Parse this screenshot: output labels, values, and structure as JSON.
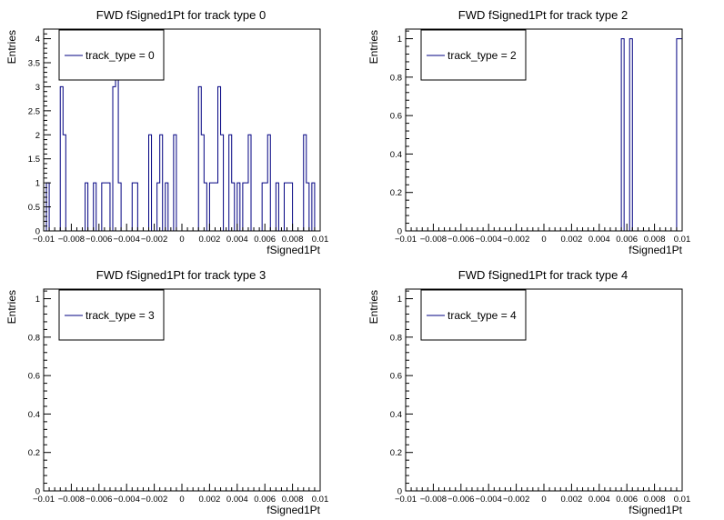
{
  "chart_data": [
    {
      "type": "histogram",
      "title": "FWD fSigned1Pt for track type 0",
      "xlabel": "fSigned1Pt",
      "ylabel": "Entries",
      "legend_label": "track_type = 0",
      "legend_position": "top-left",
      "xlim": [
        -0.01,
        0.01
      ],
      "ylim": [
        0,
        4.2
      ],
      "xticks": [
        -0.01,
        -0.008,
        -0.006,
        -0.004,
        -0.002,
        0,
        0.002,
        0.004,
        0.006,
        0.008,
        0.01
      ],
      "xtick_labels": [
        "−0.01",
        "−0.008",
        "−0.006",
        "−0.004",
        "−0.002",
        "0",
        "0.002",
        "0.004",
        "0.006",
        "0.008",
        "0.01"
      ],
      "yticks": [
        0,
        0.5,
        1,
        1.5,
        2,
        2.5,
        3,
        3.5,
        4
      ],
      "ytick_labels": [
        "0",
        "0.5",
        "1",
        "1.5",
        "2",
        "2.5",
        "3",
        "3.5",
        "4"
      ],
      "series_color": "#000080",
      "bins": [
        {
          "x0": -0.0098,
          "x1": -0.0096,
          "y": 1
        },
        {
          "x0": -0.0088,
          "x1": -0.0086,
          "y": 3
        },
        {
          "x0": -0.0086,
          "x1": -0.0084,
          "y": 2
        },
        {
          "x0": -0.007,
          "x1": -0.0068,
          "y": 1
        },
        {
          "x0": -0.0064,
          "x1": -0.0062,
          "y": 1
        },
        {
          "x0": -0.0058,
          "x1": -0.0052,
          "y": 1
        },
        {
          "x0": -0.005,
          "x1": -0.0048,
          "y": 3
        },
        {
          "x0": -0.0048,
          "x1": -0.0046,
          "y": 4
        },
        {
          "x0": -0.0046,
          "x1": -0.0044,
          "y": 1
        },
        {
          "x0": -0.0036,
          "x1": -0.0032,
          "y": 1
        },
        {
          "x0": -0.0024,
          "x1": -0.0022,
          "y": 2
        },
        {
          "x0": -0.0018,
          "x1": -0.0016,
          "y": 1
        },
        {
          "x0": -0.0016,
          "x1": -0.0014,
          "y": 2
        },
        {
          "x0": -0.0012,
          "x1": -0.001,
          "y": 1
        },
        {
          "x0": -0.0006,
          "x1": -0.0004,
          "y": 2
        },
        {
          "x0": 0.0012,
          "x1": 0.0014,
          "y": 3
        },
        {
          "x0": 0.0014,
          "x1": 0.0016,
          "y": 2
        },
        {
          "x0": 0.0016,
          "x1": 0.0018,
          "y": 1
        },
        {
          "x0": 0.002,
          "x1": 0.0026,
          "y": 1
        },
        {
          "x0": 0.0026,
          "x1": 0.0028,
          "y": 3
        },
        {
          "x0": 0.0028,
          "x1": 0.003,
          "y": 2
        },
        {
          "x0": 0.0034,
          "x1": 0.0036,
          "y": 2
        },
        {
          "x0": 0.0036,
          "x1": 0.0038,
          "y": 1
        },
        {
          "x0": 0.004,
          "x1": 0.0042,
          "y": 1
        },
        {
          "x0": 0.0044,
          "x1": 0.0048,
          "y": 1
        },
        {
          "x0": 0.0048,
          "x1": 0.005,
          "y": 2
        },
        {
          "x0": 0.0058,
          "x1": 0.0062,
          "y": 1
        },
        {
          "x0": 0.0062,
          "x1": 0.0064,
          "y": 2
        },
        {
          "x0": 0.0068,
          "x1": 0.007,
          "y": 1
        },
        {
          "x0": 0.0074,
          "x1": 0.008,
          "y": 1
        },
        {
          "x0": 0.0088,
          "x1": 0.009,
          "y": 2
        },
        {
          "x0": 0.009,
          "x1": 0.0092,
          "y": 1
        },
        {
          "x0": 0.0094,
          "x1": 0.0096,
          "y": 1
        }
      ]
    },
    {
      "type": "histogram",
      "title": "FWD fSigned1Pt for track type 2",
      "xlabel": "fSigned1Pt",
      "ylabel": "Entries",
      "legend_label": "track_type = 2",
      "legend_position": "top-left",
      "xlim": [
        -0.01,
        0.01
      ],
      "ylim": [
        0,
        1.05
      ],
      "xticks": [
        -0.01,
        -0.008,
        -0.006,
        -0.004,
        -0.002,
        0,
        0.002,
        0.004,
        0.006,
        0.008,
        0.01
      ],
      "xtick_labels": [
        "−0.01",
        "−0.008",
        "−0.006",
        "−0.004",
        "−0.002",
        "0",
        "0.002",
        "0.004",
        "0.006",
        "0.008",
        "0.01"
      ],
      "yticks": [
        0,
        0.2,
        0.4,
        0.6,
        0.8,
        1
      ],
      "ytick_labels": [
        "0",
        "0.2",
        "0.4",
        "0.6",
        "0.8",
        "1"
      ],
      "series_color": "#000080",
      "bins": [
        {
          "x0": 0.0056,
          "x1": 0.0058,
          "y": 1
        },
        {
          "x0": 0.0062,
          "x1": 0.0064,
          "y": 1
        },
        {
          "x0": 0.0096,
          "x1": 0.0098,
          "y": 1
        },
        {
          "x0": 0.0098,
          "x1": 0.01,
          "y": 1
        }
      ]
    },
    {
      "type": "histogram",
      "title": "FWD fSigned1Pt for track type 3",
      "xlabel": "fSigned1Pt",
      "ylabel": "Entries",
      "legend_label": "track_type = 3",
      "legend_position": "top-left",
      "xlim": [
        -0.01,
        0.01
      ],
      "ylim": [
        0,
        1.05
      ],
      "xticks": [
        -0.01,
        -0.008,
        -0.006,
        -0.004,
        -0.002,
        0,
        0.002,
        0.004,
        0.006,
        0.008,
        0.01
      ],
      "xtick_labels": [
        "−0.01",
        "−0.008",
        "−0.006",
        "−0.004",
        "−0.002",
        "0",
        "0.002",
        "0.004",
        "0.006",
        "0.008",
        "0.01"
      ],
      "yticks": [
        0,
        0.2,
        0.4,
        0.6,
        0.8,
        1
      ],
      "ytick_labels": [
        "0",
        "0.2",
        "0.4",
        "0.6",
        "0.8",
        "1"
      ],
      "series_color": "#000080",
      "bins": []
    },
    {
      "type": "histogram",
      "title": "FWD fSigned1Pt for track type 4",
      "xlabel": "fSigned1Pt",
      "ylabel": "Entries",
      "legend_label": "track_type = 4",
      "legend_position": "top-left",
      "xlim": [
        -0.01,
        0.01
      ],
      "ylim": [
        0,
        1.05
      ],
      "xticks": [
        -0.01,
        -0.008,
        -0.006,
        -0.004,
        -0.002,
        0,
        0.002,
        0.004,
        0.006,
        0.008,
        0.01
      ],
      "xtick_labels": [
        "−0.01",
        "−0.008",
        "−0.006",
        "−0.004",
        "−0.002",
        "0",
        "0.002",
        "0.004",
        "0.006",
        "0.008",
        "0.01"
      ],
      "yticks": [
        0,
        0.2,
        0.4,
        0.6,
        0.8,
        1
      ],
      "ytick_labels": [
        "0",
        "0.2",
        "0.4",
        "0.6",
        "0.8",
        "1"
      ],
      "series_color": "#000080",
      "bins": []
    }
  ]
}
